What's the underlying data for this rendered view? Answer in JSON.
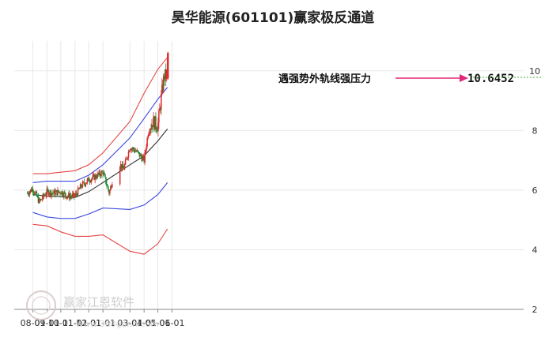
{
  "chart_data": {
    "type": "candlestick",
    "title": "昊华能源(601101)赢家极反通道",
    "x_ticks": [
      "08-01",
      "09-01",
      "10-01",
      "11-01",
      "12-01",
      "01-01",
      "03-01",
      "04-01",
      "05-01",
      "06-01"
    ],
    "y_ticks": [
      2,
      4,
      6,
      8,
      10
    ],
    "ylim": [
      2,
      11
    ],
    "annotation": {
      "text": "遇强势外轨线强压力",
      "value": "10.6452"
    },
    "watermark": {
      "text": "赢家江恩软件",
      "url": "www.360gann.com"
    },
    "colors": {
      "up": "#e0292c",
      "down": "#1a8a2a",
      "upper_band": "#e64646",
      "lower_band": "#e64646",
      "mid_upper": "#3a48e0",
      "mid_lower": "#3a48e0",
      "center": "#333333",
      "arrow": "#e0287a",
      "resist_line": "#3cb043"
    },
    "series": [
      {
        "name": "upper_band",
        "x": [
          "08-01",
          "09-01",
          "10-01",
          "11-01",
          "12-01",
          "01-01",
          "03-01",
          "04-01",
          "05-01",
          "05-22"
        ],
        "values": [
          6.55,
          6.55,
          6.6,
          6.65,
          6.85,
          7.25,
          8.3,
          9.25,
          10.05,
          10.45
        ]
      },
      {
        "name": "mid_upper",
        "x": [
          "08-01",
          "09-01",
          "10-01",
          "11-01",
          "12-01",
          "01-01",
          "03-01",
          "04-01",
          "05-01",
          "05-22"
        ],
        "values": [
          6.25,
          6.3,
          6.3,
          6.3,
          6.5,
          6.85,
          7.75,
          8.4,
          9.05,
          9.45
        ]
      },
      {
        "name": "center",
        "x": [
          "08-01",
          "09-01",
          "10-01",
          "11-01",
          "12-01",
          "01-01",
          "03-01",
          "04-01",
          "05-01",
          "05-22"
        ],
        "values": [
          5.85,
          5.8,
          5.78,
          5.75,
          5.95,
          6.25,
          6.85,
          7.15,
          7.65,
          8.05
        ]
      },
      {
        "name": "mid_lower",
        "x": [
          "08-01",
          "09-01",
          "10-01",
          "11-01",
          "12-01",
          "01-01",
          "03-01",
          "04-01",
          "05-01",
          "05-22"
        ],
        "values": [
          5.25,
          5.1,
          5.05,
          5.05,
          5.2,
          5.4,
          5.35,
          5.5,
          5.85,
          6.25
        ]
      },
      {
        "name": "lower_band",
        "x": [
          "08-01",
          "09-01",
          "10-01",
          "11-01",
          "12-01",
          "01-01",
          "03-01",
          "04-01",
          "05-01",
          "05-22"
        ],
        "values": [
          4.85,
          4.8,
          4.6,
          4.45,
          4.45,
          4.5,
          3.95,
          3.85,
          4.2,
          4.7
        ]
      },
      {
        "name": "close",
        "x": [
          "07-20",
          "08-01",
          "08-15",
          "09-01",
          "09-15",
          "10-01",
          "10-15",
          "11-01",
          "11-15",
          "12-01",
          "12-15",
          "01-01",
          "01-15",
          "02-01",
          "02-15",
          "03-01",
          "03-15",
          "04-01",
          "04-10",
          "04-20",
          "05-01",
          "05-10",
          "05-15",
          "05-20",
          "05-23"
        ],
        "values": [
          5.9,
          6.05,
          5.6,
          5.95,
          5.9,
          5.95,
          5.8,
          5.8,
          6.15,
          6.35,
          6.45,
          6.6,
          5.9,
          7.0,
          6.7,
          7.45,
          7.3,
          7.0,
          7.95,
          8.3,
          8.15,
          9.3,
          9.85,
          9.8,
          10.55
        ]
      }
    ]
  }
}
